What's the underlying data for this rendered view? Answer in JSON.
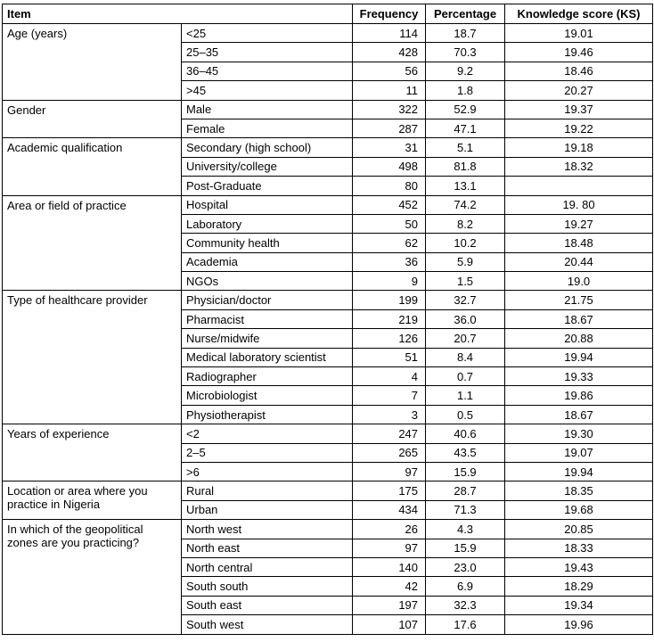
{
  "table": {
    "headers": [
      "Item",
      "Frequency",
      "Percentage",
      "Knowledge score (KS)"
    ],
    "groups": [
      {
        "label": "Age (years)",
        "rows": [
          [
            "<25",
            "114",
            "18.7",
            "19.01"
          ],
          [
            "25–35",
            "428",
            "70.3",
            "19.46"
          ],
          [
            "36–45",
            "56",
            "9.2",
            "18.46"
          ],
          [
            ">45",
            "11",
            "1.8",
            "20.27"
          ]
        ]
      },
      {
        "label": "Gender",
        "rows": [
          [
            "Male",
            "322",
            "52.9",
            "19.37"
          ],
          [
            "Female",
            "287",
            "47.1",
            "19.22"
          ]
        ]
      },
      {
        "label": "Academic qualification",
        "rows": [
          [
            "Secondary (high school)",
            "31",
            "5.1",
            "19.18"
          ],
          [
            "University/college",
            "498",
            "81.8",
            "18.32"
          ],
          [
            "Post-Graduate",
            "80",
            "13.1",
            null
          ]
        ]
      },
      {
        "label": "Area or field of practice",
        "rows": [
          [
            "Hospital",
            "452",
            "74.2",
            "19. 80"
          ],
          [
            "Laboratory",
            "50",
            "8.2",
            "19.27"
          ],
          [
            "Community health",
            "62",
            "10.2",
            "18.48"
          ],
          [
            "Academia",
            "36",
            "5.9",
            "20.44"
          ],
          [
            "NGOs",
            "9",
            "1.5",
            "19.0"
          ]
        ]
      },
      {
        "label": "Type of healthcare provider",
        "rows": [
          [
            "Physician/doctor",
            "199",
            "32.7",
            "21.75"
          ],
          [
            "Pharmacist",
            "219",
            "36.0",
            "18.67"
          ],
          [
            "Nurse/midwife",
            "126",
            "20.7",
            "20.88"
          ],
          [
            "Medical laboratory scientist",
            "51",
            "8.4",
            "19.94"
          ],
          [
            "Radiographer",
            "4",
            "0.7",
            "19.33"
          ],
          [
            "Microbiologist",
            "7",
            "1.1",
            "19.86"
          ],
          [
            "Physiotherapist",
            "3",
            "0.5",
            "18.67"
          ]
        ]
      },
      {
        "label": "Years of experience",
        "rows": [
          [
            "<2",
            "247",
            "40.6",
            "19.30"
          ],
          [
            "2–5",
            "265",
            "43.5",
            "19.07"
          ],
          [
            ">6",
            "97",
            "15.9",
            "19.94"
          ]
        ]
      },
      {
        "label": "Location or area where you practice in Nigeria",
        "rows": [
          [
            "Rural",
            "175",
            "28.7",
            "18.35"
          ],
          [
            "Urban",
            "434",
            "71.3",
            "19.68"
          ]
        ]
      },
      {
        "label": "In which of the geopolitical zones are you practicing?",
        "rows": [
          [
            "North west",
            "26",
            "4.3",
            "20.85"
          ],
          [
            "North east",
            "97",
            "15.9",
            "18.33"
          ],
          [
            "North central",
            "140",
            "23.0",
            "19.43"
          ],
          [
            "South south",
            "42",
            "6.9",
            "18.29"
          ],
          [
            "South east",
            "197",
            "32.3",
            "19.34"
          ],
          [
            "South west",
            "107",
            "17.6",
            "19.96"
          ]
        ]
      }
    ]
  }
}
